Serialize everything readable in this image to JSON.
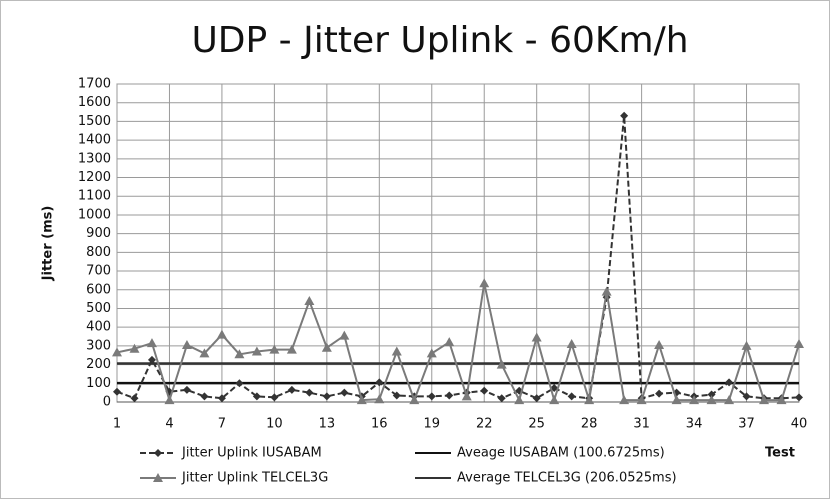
{
  "chart_data": {
    "type": "line",
    "title": "UDP - Jitter Uplink - 60Km/h",
    "y_label": "Jitter (ms)",
    "x_label": "Test",
    "x": [
      1,
      2,
      3,
      4,
      5,
      6,
      7,
      8,
      9,
      10,
      11,
      12,
      13,
      14,
      15,
      16,
      17,
      18,
      19,
      20,
      21,
      22,
      23,
      24,
      25,
      26,
      27,
      28,
      29,
      30,
      31,
      32,
      33,
      34,
      35,
      36,
      37,
      38,
      39,
      40
    ],
    "xlim": [
      1,
      40
    ],
    "xticks": [
      1,
      4,
      7,
      10,
      13,
      16,
      19,
      22,
      25,
      28,
      31,
      34,
      37,
      40
    ],
    "ylim": [
      0,
      1700
    ],
    "yticks": [
      0,
      100,
      200,
      300,
      400,
      500,
      600,
      700,
      800,
      900,
      1000,
      1100,
      1200,
      1300,
      1400,
      1500,
      1600,
      1700
    ],
    "grid": true,
    "legend": "bottom",
    "series": [
      {
        "name": "Jitter Uplink IUSABAM",
        "color": "#333333",
        "dashed": true,
        "marker": "diamond",
        "values": [
          55,
          20,
          225,
          55,
          65,
          30,
          20,
          100,
          30,
          25,
          65,
          50,
          30,
          50,
          30,
          105,
          35,
          30,
          30,
          35,
          50,
          60,
          20,
          60,
          20,
          75,
          30,
          20,
          560,
          1530,
          20,
          45,
          50,
          30,
          40,
          105,
          30,
          20,
          20,
          25
        ]
      },
      {
        "name": "Jitter Uplink TELCEL3G",
        "color": "#7a7a7a",
        "dashed": false,
        "marker": "triangle",
        "values": [
          265,
          285,
          315,
          10,
          305,
          260,
          360,
          255,
          270,
          280,
          280,
          540,
          290,
          355,
          10,
          15,
          270,
          10,
          260,
          320,
          30,
          635,
          200,
          10,
          345,
          10,
          310,
          10,
          590,
          10,
          10,
          305,
          10,
          10,
          10,
          10,
          300,
          10,
          10,
          310
        ]
      }
    ],
    "averages": [
      {
        "name": "Aveage IUSABAM (100.6725ms)",
        "value": 100.6725,
        "color": "#111111"
      },
      {
        "name": "Average TELCEL3G (206.0525ms)",
        "value": 206.0525,
        "color": "#333333"
      }
    ]
  }
}
